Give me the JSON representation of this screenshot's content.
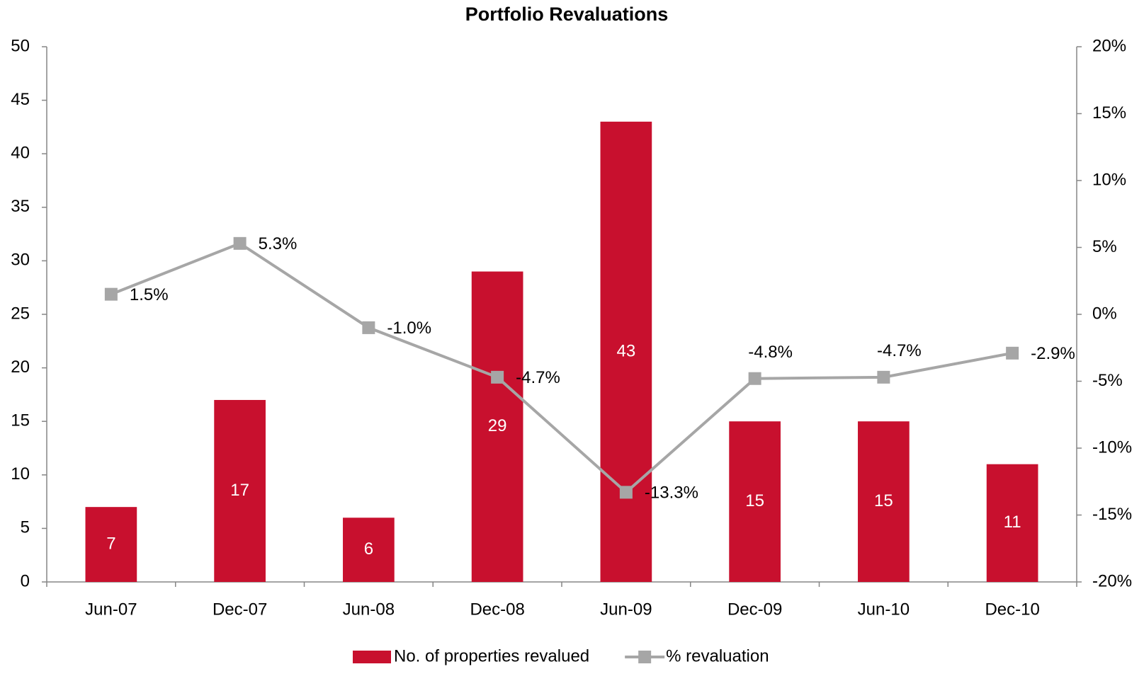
{
  "chart_data": {
    "type": "bar_line",
    "title": "Portfolio Revaluations",
    "categories": [
      "Jun-07",
      "Dec-07",
      "Jun-08",
      "Dec-08",
      "Jun-09",
      "Dec-09",
      "Jun-10",
      "Dec-10"
    ],
    "series": [
      {
        "name": "No. of properties revalued",
        "type": "bar",
        "color": "#c8102e",
        "values": [
          7,
          17,
          6,
          29,
          43,
          15,
          15,
          11
        ]
      },
      {
        "name": "% revaluation",
        "type": "line",
        "axis": "y2",
        "color": "#a6a6a6",
        "values": [
          1.5,
          5.3,
          -1.0,
          -4.7,
          -13.3,
          -4.8,
          -4.7,
          -2.9
        ],
        "value_labels": [
          "1.5%",
          "5.3%",
          "-1.0%",
          "-4.7%",
          "-13.3%",
          "-4.8%",
          "-4.7%",
          "-2.9%"
        ]
      }
    ],
    "ylim": [
      0,
      50
    ],
    "yticks": [
      0,
      5,
      10,
      15,
      20,
      25,
      30,
      35,
      40,
      45,
      50
    ],
    "y2lim": [
      -20,
      20
    ],
    "y2ticks": [
      {
        "value": -20,
        "label": "-20%"
      },
      {
        "value": -15,
        "label": "-15%"
      },
      {
        "value": -10,
        "label": "-10%"
      },
      {
        "value": -5,
        "label": "-5%"
      },
      {
        "value": 0,
        "label": "0%"
      },
      {
        "value": 5,
        "label": "5%"
      },
      {
        "value": 10,
        "label": "10%"
      },
      {
        "value": 15,
        "label": "15%"
      },
      {
        "value": 20,
        "label": "20%"
      }
    ],
    "legend": "bottom"
  }
}
